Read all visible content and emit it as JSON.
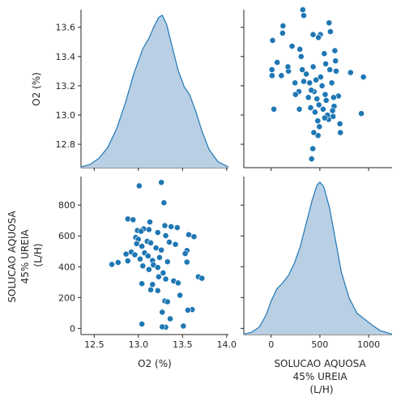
{
  "chart_data": {
    "type": "pairplot",
    "variables": [
      "O2 (%)",
      "SOLUCAO AQUOSA\n45% UREIA\n(L/H)"
    ],
    "axes": {
      "o2": {
        "label": "O2 (%)",
        "lim": [
          12.35,
          14.02
        ],
        "ticks": [
          12.5,
          13.0,
          13.5,
          14.0
        ],
        "tick_labels": [
          "12.5",
          "13.0",
          "13.5",
          "14.0"
        ],
        "yticks": [
          12.8,
          13.0,
          13.2,
          13.4,
          13.6
        ],
        "ytick_labels": [
          "12.8",
          "13.0",
          "13.2",
          "13.4",
          "13.6"
        ],
        "ylim": [
          12.64,
          13.72
        ]
      },
      "solucao": {
        "label_lines": [
          "SOLUCAO AQUOSA",
          "45% UREIA",
          "(L/H)"
        ],
        "lim": [
          -280,
          1240
        ],
        "ticks": [
          0,
          500,
          1000
        ],
        "tick_labels": [
          "0",
          "500",
          "1000"
        ],
        "ylim": [
          -40,
          985
        ],
        "yticks": [
          0,
          200,
          400,
          600,
          800
        ],
        "ytick_labels": [
          "0",
          "200",
          "400",
          "600",
          "800"
        ]
      }
    },
    "series_color": "#1f77b4",
    "kde_fill": "#b9cfe4",
    "kde_o2": [
      [
        12.35,
        0.005
      ],
      [
        12.45,
        0.02
      ],
      [
        12.55,
        0.06
      ],
      [
        12.65,
        0.13
      ],
      [
        12.75,
        0.25
      ],
      [
        12.85,
        0.42
      ],
      [
        12.95,
        0.62
      ],
      [
        13.05,
        0.78
      ],
      [
        13.12,
        0.85
      ],
      [
        13.18,
        0.93
      ],
      [
        13.23,
        0.985
      ],
      [
        13.27,
        1.0
      ],
      [
        13.32,
        0.94
      ],
      [
        13.38,
        0.8
      ],
      [
        13.45,
        0.64
      ],
      [
        13.52,
        0.53
      ],
      [
        13.58,
        0.48
      ],
      [
        13.65,
        0.37
      ],
      [
        13.72,
        0.24
      ],
      [
        13.8,
        0.12
      ],
      [
        13.9,
        0.04
      ],
      [
        14.02,
        0.005
      ]
    ],
    "kde_solucao": [
      [
        -280,
        0.003
      ],
      [
        -200,
        0.015
      ],
      [
        -120,
        0.05
      ],
      [
        -50,
        0.13
      ],
      [
        0,
        0.22
      ],
      [
        60,
        0.3
      ],
      [
        120,
        0.34
      ],
      [
        180,
        0.39
      ],
      [
        240,
        0.47
      ],
      [
        300,
        0.58
      ],
      [
        360,
        0.73
      ],
      [
        420,
        0.88
      ],
      [
        470,
        0.98
      ],
      [
        500,
        1.0
      ],
      [
        540,
        0.97
      ],
      [
        600,
        0.83
      ],
      [
        660,
        0.62
      ],
      [
        720,
        0.41
      ],
      [
        800,
        0.24
      ],
      [
        880,
        0.14
      ],
      [
        960,
        0.1
      ],
      [
        1040,
        0.06
      ],
      [
        1120,
        0.025
      ],
      [
        1240,
        0.003
      ]
    ],
    "points": [
      [
        13.26,
        947
      ],
      [
        13.01,
        925
      ],
      [
        13.29,
        815
      ],
      [
        12.88,
        710
      ],
      [
        12.94,
        705
      ],
      [
        13.13,
        690
      ],
      [
        13.3,
        667
      ],
      [
        13.37,
        660
      ],
      [
        13.44,
        654
      ],
      [
        13.06,
        646
      ],
      [
        13.12,
        641
      ],
      [
        12.99,
        635
      ],
      [
        13.03,
        630
      ],
      [
        13.22,
        622
      ],
      [
        13.57,
        608
      ],
      [
        13.31,
        602
      ],
      [
        13.63,
        595
      ],
      [
        12.97,
        590
      ],
      [
        13.0,
        578
      ],
      [
        13.1,
        565
      ],
      [
        13.35,
        560
      ],
      [
        13.14,
        555
      ],
      [
        12.98,
        550
      ],
      [
        13.42,
        545
      ],
      [
        13.04,
        533
      ],
      [
        13.2,
        522
      ],
      [
        13.26,
        508
      ],
      [
        13.55,
        505
      ],
      [
        12.92,
        495
      ],
      [
        13.07,
        490
      ],
      [
        13.53,
        485
      ],
      [
        12.86,
        482
      ],
      [
        12.96,
        478
      ],
      [
        13.11,
        470
      ],
      [
        13.24,
        460
      ],
      [
        13.02,
        450
      ],
      [
        13.16,
        440
      ],
      [
        12.88,
        438
      ],
      [
        13.33,
        432
      ],
      [
        13.55,
        430
      ],
      [
        12.77,
        428
      ],
      [
        12.7,
        415
      ],
      [
        13.17,
        412
      ],
      [
        13.05,
        405
      ],
      [
        13.22,
        395
      ],
      [
        13.12,
        382
      ],
      [
        13.28,
        360
      ],
      [
        13.68,
        335
      ],
      [
        13.72,
        325
      ],
      [
        13.23,
        335
      ],
      [
        13.31,
        320
      ],
      [
        13.4,
        308
      ],
      [
        13.45,
        295
      ],
      [
        13.04,
        290
      ],
      [
        13.16,
        285
      ],
      [
        13.14,
        250
      ],
      [
        13.22,
        245
      ],
      [
        13.47,
        215
      ],
      [
        13.3,
        178
      ],
      [
        13.33,
        173
      ],
      [
        13.61,
        122
      ],
      [
        13.56,
        118
      ],
      [
        13.27,
        105
      ],
      [
        13.36,
        62
      ],
      [
        13.04,
        28
      ],
      [
        13.51,
        15
      ],
      [
        13.31,
        8
      ],
      [
        13.27,
        10
      ]
    ]
  }
}
